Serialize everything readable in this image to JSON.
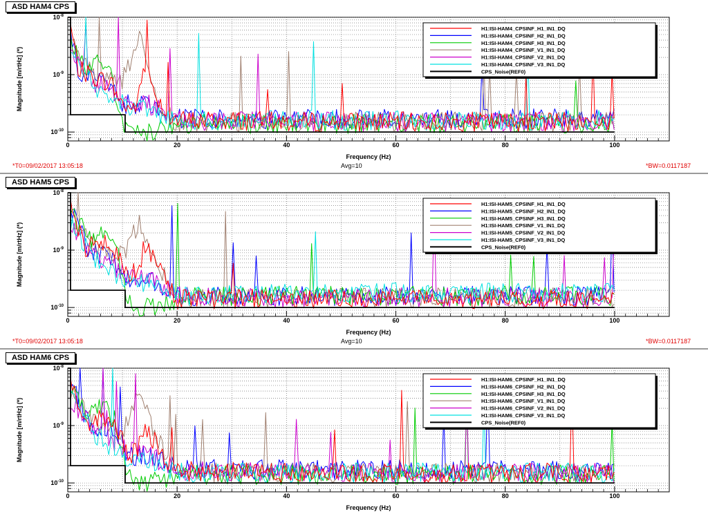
{
  "panels": [
    {
      "title": "ASD HAM4 CPS",
      "t0": "*T0=09/02/2017 13:05:18",
      "avg": "Avg=10",
      "bw": "*BW=0.0117187",
      "legend": [
        "H1:ISI-HAM4_CPSINF_H1_IN1_DQ",
        "H1:ISI-HAM4_CPSINF_H2_IN1_DQ",
        "H1:ISI-HAM4_CPSINF_H3_IN1_DQ",
        "H1:ISI-HAM4_CPSINF_V1_IN1_DQ",
        "H1:ISI-HAM4_CPSINF_V2_IN1_DQ",
        "H1:ISI-HAM4_CPSINF_V3_IN1_DQ",
        "CPS_Noise(REF0)"
      ]
    },
    {
      "title": "ASD HAM5 CPS",
      "t0": "*T0=09/02/2017 13:05:18",
      "avg": "Avg=10",
      "bw": "*BW=0.0117187",
      "legend": [
        "H1:ISI-HAM5_CPSINF_H1_IN1_DQ",
        "H1:ISI-HAM5_CPSINF_H2_IN1_DQ",
        "H1:ISI-HAM5_CPSINF_H3_IN1_DQ",
        "H1:ISI-HAM5_CPSINF_V1_IN1_DQ",
        "H1:ISI-HAM5_CPSINF_V2_IN1_DQ",
        "H1:ISI-HAM5_CPSINF_V3_IN1_DQ",
        "CPS_Noise(REF0)"
      ]
    },
    {
      "title": "ASD HAM6 CPS",
      "t0": "",
      "avg": "",
      "bw": "",
      "legend": [
        "H1:ISI-HAM6_CPSINF_H1_IN1_DQ",
        "H1:ISI-HAM6_CPSINF_H2_IN1_DQ",
        "H1:ISI-HAM6_CPSINF_H3_IN1_DQ",
        "H1:ISI-HAM6_CPSINF_V1_IN1_DQ",
        "H1:ISI-HAM6_CPSINF_V2_IN1_DQ",
        "H1:ISI-HAM6_CPSINF_V3_IN1_DQ",
        "CPS_Noise(REF0)"
      ]
    }
  ],
  "colors": {
    "H1": "#ff0000",
    "H2": "#0000ff",
    "H3": "#00cc00",
    "V1": "#a08070",
    "V2": "#cc00cc",
    "V3": "#00e0e0",
    "REF0": "#000000"
  },
  "chart_data": [
    {
      "type": "line",
      "title": "ASD HAM4 CPS",
      "xlabel": "Frequency (Hz)",
      "ylabel": "Magnitude [m/rtHz] (*)",
      "xlim": [
        0,
        110
      ],
      "ylim": [
        7e-11,
        1e-08
      ],
      "yscale": "log",
      "xticks": [
        0,
        20,
        40,
        60,
        80,
        100
      ],
      "yticks": [
        "10^-10",
        "10^-9",
        "10^-8"
      ],
      "grid": true,
      "legend_position": "top-right",
      "ref_noise": {
        "x": [
          0,
          0.5,
          0.5,
          10.5,
          10.5,
          100
        ],
        "y": [
          1e-08,
          1e-08,
          2e-10,
          2e-10,
          1e-10,
          1e-10
        ]
      },
      "series": [
        {
          "name": "H1:ISI-HAM4_CPSINF_H1_IN1_DQ",
          "x": [
            0.5,
            2,
            5,
            8,
            10,
            12,
            13,
            14,
            16,
            18,
            20,
            30,
            40,
            60,
            80,
            100
          ],
          "y": [
            7e-09,
            1.2e-09,
            9e-10,
            7e-10,
            3e-10,
            2.5e-10,
            4e-10,
            1.5e-09,
            5e-10,
            2e-10,
            1.6e-10,
            1.6e-10,
            1.5e-10,
            1.5e-10,
            1.5e-10,
            1.5e-10
          ]
        },
        {
          "name": "H1:ISI-HAM4_CPSINF_H2_IN1_DQ",
          "x": [
            0.5,
            2,
            5,
            8,
            10,
            14,
            18,
            20,
            40,
            60,
            80,
            100
          ],
          "y": [
            6e-09,
            1e-09,
            8e-10,
            6e-10,
            3e-10,
            3e-10,
            1.8e-10,
            1.7e-10,
            1.7e-10,
            1.7e-10,
            1.7e-10,
            1.7e-10
          ]
        },
        {
          "name": "H1:ISI-HAM4_CPSINF_H3_IN1_DQ",
          "x": [
            0.5,
            3,
            6,
            8,
            10,
            12,
            15,
            18,
            20,
            40,
            60,
            100
          ],
          "y": [
            5e-09,
            1.2e-09,
            2e-09,
            9e-10,
            1.3e-10,
            1e-10,
            1e-10,
            1.2e-10,
            1.4e-10,
            1.4e-10,
            1.4e-10,
            1.4e-10
          ]
        },
        {
          "name": "H1:ISI-HAM4_CPSINF_V1_IN1_DQ",
          "x": [
            0.5,
            5,
            10,
            11,
            12,
            13,
            14,
            16,
            18,
            20,
            40,
            100
          ],
          "y": [
            4e-09,
            8e-10,
            8e-10,
            1.5e-09,
            2e-09,
            6e-09,
            3e-09,
            5e-10,
            2e-10,
            1.5e-10,
            1.5e-10,
            1.5e-10
          ]
        },
        {
          "name": "H1:ISI-HAM4_CPSINF_V2_IN1_DQ",
          "x": [
            0.5,
            5,
            10,
            15,
            20,
            40,
            100
          ],
          "y": [
            3e-09,
            7e-10,
            4e-10,
            3e-10,
            1.6e-10,
            1.5e-10,
            1.5e-10
          ]
        },
        {
          "name": "H1:ISI-HAM4_CPSINF_V3_IN1_DQ",
          "x": [
            0.5,
            5,
            10,
            15,
            20,
            40,
            100
          ],
          "y": [
            3e-09,
            6e-10,
            3e-10,
            2.5e-10,
            1.5e-10,
            1.6e-10,
            1.6e-10
          ]
        },
        {
          "name": "CPS_Noise(REF0)",
          "x": [
            0,
            0.5,
            0.5,
            10.5,
            10.5,
            100
          ],
          "y": [
            1e-08,
            1e-08,
            2e-10,
            2e-10,
            1e-10,
            1e-10
          ]
        }
      ]
    },
    {
      "type": "line",
      "title": "ASD HAM5 CPS",
      "xlabel": "Frequency (Hz)",
      "ylabel": "Magnitude [m/rtHz] (*)",
      "xlim": [
        0,
        110
      ],
      "ylim": [
        7e-11,
        1e-08
      ],
      "yscale": "log",
      "xticks": [
        0,
        20,
        40,
        60,
        80,
        100
      ],
      "yticks": [
        "10^-10",
        "10^-9",
        "10^-8"
      ],
      "grid": true,
      "legend_position": "top-right",
      "series": [
        {
          "name": "H1:ISI-HAM5_CPSINF_H1_IN1_DQ",
          "x": [
            0.5,
            3,
            6,
            9,
            11,
            13,
            14,
            16,
            18,
            20,
            40,
            60,
            80,
            100
          ],
          "y": [
            8e-09,
            1e-09,
            1.5e-09,
            9e-10,
            3e-10,
            5e-10,
            1.2e-09,
            6e-10,
            3e-10,
            1.4e-10,
            1.4e-10,
            1.4e-10,
            1.4e-10,
            1.4e-10
          ]
        },
        {
          "name": "H1:ISI-HAM5_CPSINF_H2_IN1_DQ",
          "x": [
            0.5,
            4,
            8,
            11,
            15,
            20,
            40,
            100
          ],
          "y": [
            6e-09,
            9e-10,
            8e-10,
            3e-10,
            3e-10,
            1.6e-10,
            1.6e-10,
            1.6e-10
          ]
        },
        {
          "name": "H1:ISI-HAM5_CPSINF_H3_IN1_DQ",
          "x": [
            0.5,
            4,
            7,
            9,
            11,
            14,
            18,
            20,
            40,
            100
          ],
          "y": [
            5e-09,
            1.5e-09,
            2.5e-09,
            1e-09,
            1.2e-10,
            1e-10,
            1.1e-10,
            1.5e-10,
            1.6e-10,
            1.6e-10
          ]
        },
        {
          "name": "H1:ISI-HAM5_CPSINF_V1_IN1_DQ",
          "x": [
            0.5,
            6,
            10,
            12,
            13,
            14,
            16,
            18,
            20,
            40,
            100
          ],
          "y": [
            4e-09,
            9e-10,
            8e-10,
            2e-09,
            3e-09,
            2e-09,
            8e-10,
            3e-10,
            1.5e-10,
            1.5e-10,
            1.5e-10
          ]
        },
        {
          "name": "H1:ISI-HAM5_CPSINF_V2_IN1_DQ",
          "x": [
            0.5,
            5,
            10,
            15,
            20,
            40,
            100
          ],
          "y": [
            3e-09,
            8e-10,
            4e-10,
            3e-10,
            1.6e-10,
            1.5e-10,
            1.5e-10
          ]
        },
        {
          "name": "H1:ISI-HAM5_CPSINF_V3_IN1_DQ",
          "x": [
            0.5,
            5,
            10,
            15,
            20,
            40,
            100
          ],
          "y": [
            3e-09,
            7e-10,
            3e-10,
            2.5e-10,
            1.6e-10,
            1.8e-10,
            1.8e-10
          ]
        },
        {
          "name": "CPS_Noise(REF0)",
          "x": [
            0,
            0.5,
            0.5,
            10.5,
            10.5,
            100
          ],
          "y": [
            1e-08,
            1e-08,
            2e-10,
            2e-10,
            1e-10,
            1e-10
          ]
        }
      ]
    },
    {
      "type": "line",
      "title": "ASD HAM6 CPS",
      "xlabel": "Frequency (Hz)",
      "ylabel": "Magnitude [m/rtHz] (*)",
      "xlim": [
        0,
        110
      ],
      "ylim": [
        7e-11,
        1e-08
      ],
      "yscale": "log",
      "xticks": [
        0,
        20,
        40,
        60,
        80,
        100
      ],
      "yticks": [
        "10^-10",
        "10^-9",
        "10^-8"
      ],
      "grid": true,
      "legend_position": "top-right",
      "series": [
        {
          "name": "H1:ISI-HAM6_CPSINF_H1_IN1_DQ",
          "x": [
            0.5,
            3,
            6,
            9,
            11,
            13,
            14,
            16,
            18,
            20,
            40,
            60,
            80,
            100
          ],
          "y": [
            8e-09,
            1e-09,
            1.4e-09,
            1e-09,
            3e-10,
            4e-10,
            1.1e-09,
            5e-10,
            2.5e-10,
            1.6e-10,
            1.5e-10,
            1.5e-10,
            1.5e-10,
            1.5e-10
          ]
        },
        {
          "name": "H1:ISI-HAM6_CPSINF_H2_IN1_DQ",
          "x": [
            0.5,
            4,
            8,
            11,
            15,
            20,
            40,
            100
          ],
          "y": [
            6e-09,
            9e-10,
            9e-10,
            3e-10,
            3e-10,
            1.8e-10,
            1.7e-10,
            1.7e-10
          ]
        },
        {
          "name": "H1:ISI-HAM6_CPSINF_H3_IN1_DQ",
          "x": [
            0.5,
            4,
            7,
            9,
            11,
            14,
            18,
            20,
            40,
            100
          ],
          "y": [
            5e-09,
            1.5e-09,
            2.5e-09,
            1e-09,
            1.2e-10,
            1e-10,
            1.2e-10,
            1.4e-10,
            1.4e-10,
            1.4e-10
          ]
        },
        {
          "name": "H1:ISI-HAM6_CPSINF_V1_IN1_DQ",
          "x": [
            0.5,
            6,
            10,
            12,
            13,
            14,
            16,
            18,
            20,
            40,
            100
          ],
          "y": [
            4e-09,
            9e-10,
            8e-10,
            2e-09,
            3.5e-09,
            2e-09,
            8e-10,
            3e-10,
            1.5e-10,
            1.5e-10,
            1.5e-10
          ]
        },
        {
          "name": "H1:ISI-HAM6_CPSINF_V2_IN1_DQ",
          "x": [
            0.5,
            5,
            10,
            15,
            20,
            40,
            100
          ],
          "y": [
            3e-09,
            8e-10,
            4e-10,
            3e-10,
            1.6e-10,
            1.5e-10,
            1.5e-10
          ]
        },
        {
          "name": "H1:ISI-HAM6_CPSINF_V3_IN1_DQ",
          "x": [
            0.5,
            5,
            10,
            15,
            20,
            40,
            100
          ],
          "y": [
            3e-09,
            7e-10,
            3e-10,
            2.5e-10,
            1.5e-10,
            1.5e-10,
            1.5e-10
          ]
        },
        {
          "name": "CPS_Noise(REF0)",
          "x": [
            0,
            0.5,
            0.5,
            10.5,
            10.5,
            100
          ],
          "y": [
            1e-08,
            1e-08,
            2e-10,
            2e-10,
            1e-10,
            1e-10
          ]
        }
      ]
    }
  ]
}
